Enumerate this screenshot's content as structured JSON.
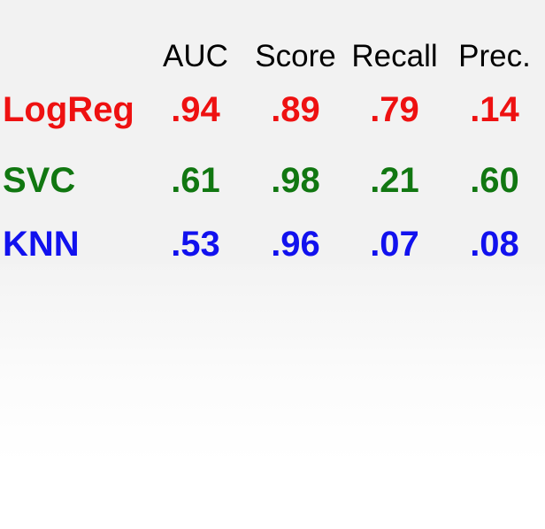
{
  "colors": {
    "LogReg": "#ee1111",
    "SVC": "#117711",
    "KNN": "#1111ee"
  },
  "chart_data": {
    "type": "table",
    "columns": [
      "AUC",
      "Score",
      "Recall",
      "Prec."
    ],
    "rows": [
      {
        "name": "LogReg",
        "color": "#ee1111",
        "values": [
          ".94",
          ".89",
          ".79",
          ".14"
        ]
      },
      {
        "name": "SVC",
        "color": "#117711",
        "values": [
          ".61",
          ".98",
          ".21",
          ".60"
        ]
      },
      {
        "name": "KNN",
        "color": "#1111ee",
        "values": [
          ".53",
          ".96",
          ".07",
          ".08"
        ]
      }
    ]
  }
}
